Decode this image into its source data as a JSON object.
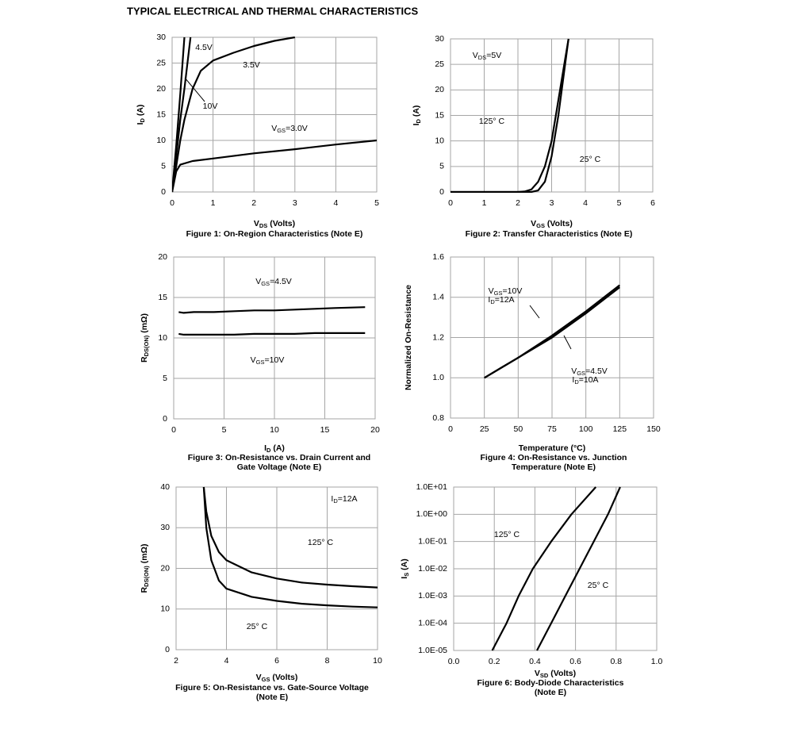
{
  "header": {
    "title": "TYPICAL ELECTRICAL AND THERMAL CHARACTERISTICS"
  },
  "chart_data": [
    {
      "type": "line",
      "xlabel": "VDS (Volts)",
      "ylabel": "ID (A)",
      "caption": [
        "Figure 1: On-Region Characteristics (Note E)"
      ],
      "xlim": [
        0,
        5
      ],
      "ylim": [
        0,
        30
      ],
      "xticks": [
        0,
        1,
        2,
        3,
        4,
        5
      ],
      "yticks": [
        0,
        5,
        10,
        15,
        20,
        25,
        30
      ],
      "grid": true,
      "series": [
        {
          "name": "10V",
          "color": "#000000",
          "x": [
            0,
            0.1,
            0.2,
            0.3
          ],
          "values": [
            0,
            9,
            19,
            30
          ]
        },
        {
          "name": "4.5V",
          "color": "#000000",
          "x": [
            0,
            0.1,
            0.2,
            0.3,
            0.45
          ],
          "values": [
            0,
            7,
            14,
            20,
            30
          ]
        },
        {
          "name": "3.5V",
          "color": "#000000",
          "x": [
            0,
            0.1,
            0.2,
            0.3,
            0.5,
            0.7,
            1,
            1.5,
            2,
            2.5,
            3
          ],
          "values": [
            0,
            5,
            10,
            14,
            20,
            23.5,
            25.5,
            27,
            28.3,
            29.3,
            30
          ]
        },
        {
          "name": "VGS=3.0V",
          "color": "#000000",
          "x": [
            0,
            0.1,
            0.2,
            0.5,
            1,
            2,
            3,
            4,
            5
          ],
          "values": [
            0,
            4,
            5.3,
            6,
            6.5,
            7.5,
            8.3,
            9.2,
            10
          ]
        }
      ],
      "annotations": []
    },
    {
      "type": "line",
      "xlabel": "VGS (Volts)",
      "ylabel": "ID (A)",
      "caption": [
        "Figure 2: Transfer Characteristics (Note E)"
      ],
      "xlim": [
        0,
        6
      ],
      "ylim": [
        0,
        30
      ],
      "xticks": [
        0,
        1,
        2,
        3,
        4,
        5,
        6
      ],
      "yticks": [
        0,
        5,
        10,
        15,
        20,
        25,
        30
      ],
      "grid": true,
      "series": [
        {
          "name": "125° C",
          "color": "#000000",
          "x": [
            0,
            2,
            2.2,
            2.4,
            2.6,
            2.8,
            3,
            3.2,
            3.4,
            3.5
          ],
          "values": [
            0,
            0,
            0.1,
            0.5,
            2,
            5,
            10,
            18,
            26,
            30
          ]
        },
        {
          "name": "25° C",
          "color": "#000000",
          "x": [
            0,
            2.4,
            2.6,
            2.8,
            3,
            3.2,
            3.4,
            3.5
          ],
          "values": [
            0,
            0,
            0.3,
            2,
            7,
            15,
            25,
            30
          ]
        }
      ],
      "annotations": [
        "VDS=5V"
      ]
    },
    {
      "type": "line",
      "xlabel": "ID (A)",
      "ylabel": "RDS(ON) (mΩ)",
      "caption": [
        "Figure 3: On-Resistance vs. Drain Current and",
        "Gate Voltage (Note E)"
      ],
      "xlim": [
        0,
        20
      ],
      "ylim": [
        0,
        20
      ],
      "xticks": [
        0,
        5,
        10,
        15,
        20
      ],
      "yticks": [
        0,
        5,
        10,
        15,
        20
      ],
      "grid": true,
      "series": [
        {
          "name": "VGS=4.5V",
          "color": "#000000",
          "x": [
            0.5,
            1,
            2,
            4,
            6,
            8,
            10,
            12,
            14,
            16,
            19
          ],
          "values": [
            13.2,
            13.1,
            13.2,
            13.2,
            13.3,
            13.4,
            13.4,
            13.5,
            13.6,
            13.7,
            13.8
          ]
        },
        {
          "name": "VGS=10V",
          "color": "#000000",
          "x": [
            0.5,
            1,
            2,
            4,
            6,
            8,
            10,
            12,
            14,
            16,
            19
          ],
          "values": [
            10.5,
            10.4,
            10.4,
            10.4,
            10.4,
            10.5,
            10.5,
            10.5,
            10.6,
            10.6,
            10.6
          ]
        }
      ],
      "annotations": []
    },
    {
      "type": "line",
      "xlabel": "Temperature (°C)",
      "ylabel": "Normalized On-Resistance",
      "caption": [
        "Figure 4: On-Resistance vs. Junction",
        "Temperature (Note E)"
      ],
      "xlim": [
        0,
        150
      ],
      "ylim": [
        0.8,
        1.6
      ],
      "xticks": [
        0,
        25,
        50,
        75,
        100,
        125,
        150
      ],
      "yticks": [
        0.8,
        {
          "value": 1,
          "label": "1.0"
        },
        1.2,
        1.4,
        1.6
      ],
      "grid": true,
      "series": [
        {
          "name": "VGS=10V",
          "note": "ID=12A",
          "color": "#000000",
          "x": [
            25,
            50,
            75,
            100,
            125
          ],
          "values": [
            1.0,
            1.1,
            1.21,
            1.33,
            1.46
          ]
        },
        {
          "name": "VGS=4.5V",
          "note": "ID=10A",
          "color": "#000000",
          "x": [
            25,
            50,
            75,
            100,
            125
          ],
          "values": [
            1.0,
            1.1,
            1.2,
            1.32,
            1.45
          ]
        }
      ],
      "annotations": []
    },
    {
      "type": "line",
      "xlabel": "VGS (Volts)",
      "ylabel": "RDS(ON) (mΩ)",
      "caption": [
        "Figure 5: On-Resistance vs. Gate-Source Voltage",
        "(Note E)"
      ],
      "xlim": [
        2,
        10
      ],
      "ylim": [
        0,
        40
      ],
      "xticks": [
        2,
        4,
        6,
        8,
        10
      ],
      "yticks": [
        0,
        10,
        20,
        30,
        40
      ],
      "grid": true,
      "series": [
        {
          "name": "125° C",
          "color": "#000000",
          "x": [
            3.1,
            3.2,
            3.4,
            3.7,
            4,
            5,
            6,
            7,
            8,
            9,
            10
          ],
          "values": [
            40,
            34,
            28,
            24,
            22,
            19,
            17.5,
            16.5,
            16,
            15.6,
            15.3
          ]
        },
        {
          "name": "25° C",
          "color": "#000000",
          "x": [
            3.1,
            3.2,
            3.4,
            3.7,
            4,
            5,
            6,
            7,
            8,
            9,
            10
          ],
          "values": [
            40,
            30,
            22,
            17,
            15,
            13,
            12,
            11.3,
            10.9,
            10.6,
            10.4
          ]
        }
      ],
      "annotations": [
        "ID=12A"
      ]
    },
    {
      "type": "line",
      "xlabel": "VSD (Volts)",
      "ylabel": "IS (A)",
      "caption": [
        "Figure 6: Body-Diode Characteristics",
        "(Note E)"
      ],
      "ylog": true,
      "xlim": [
        0,
        1
      ],
      "ylim": [
        1e-05,
        10
      ],
      "xticks": [
        {
          "value": 0,
          "label": "0.0"
        },
        0.2,
        0.4,
        0.6,
        0.8,
        {
          "value": 1,
          "label": "1.0"
        }
      ],
      "yticks": [
        {
          "value": 1e-05,
          "label": "1.0E-05"
        },
        {
          "value": 0.0001,
          "label": "1.0E-04"
        },
        {
          "value": 0.001,
          "label": "1.0E-03"
        },
        {
          "value": 0.01,
          "label": "1.0E-02"
        },
        {
          "value": 0.1,
          "label": "1.0E-01"
        },
        {
          "value": 1,
          "label": "1.0E+00"
        },
        {
          "value": 10,
          "label": "1.0E+01"
        }
      ],
      "grid": true,
      "series": [
        {
          "name": "125° C",
          "color": "#000000",
          "x": [
            0.19,
            0.26,
            0.32,
            0.39,
            0.48,
            0.58,
            0.7
          ],
          "values": [
            1e-05,
            0.0001,
            0.001,
            0.01,
            0.1,
            1,
            10
          ]
        },
        {
          "name": "25° C",
          "color": "#000000",
          "x": [
            0.41,
            0.48,
            0.55,
            0.62,
            0.69,
            0.76,
            0.82
          ],
          "values": [
            1e-05,
            0.0001,
            0.001,
            0.01,
            0.1,
            1,
            10
          ]
        }
      ],
      "annotations": []
    }
  ]
}
